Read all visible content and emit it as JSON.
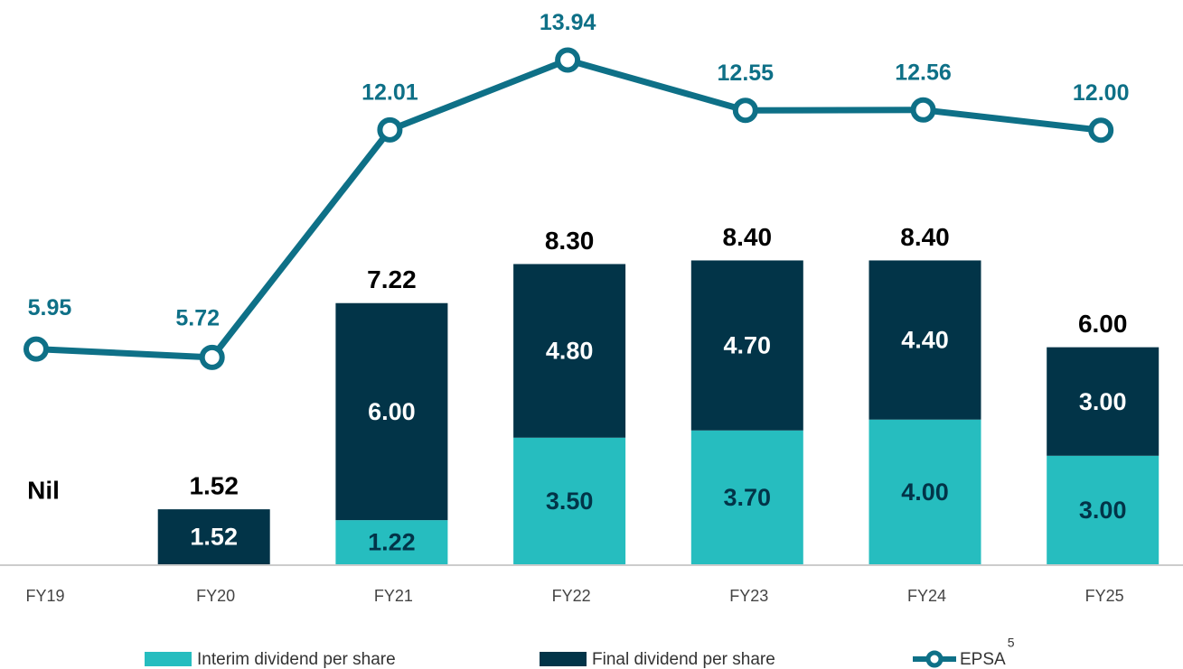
{
  "chart_data": {
    "type": "bar_line",
    "categories": [
      "FY19",
      "FY20",
      "FY21",
      "FY22",
      "FY23",
      "FY24",
      "FY25"
    ],
    "series": [
      {
        "name": "Interim dividend per share",
        "color": "#26bdbf",
        "values": [
          null,
          null,
          1.22,
          3.5,
          3.7,
          4.0,
          3.0
        ],
        "value_labels": [
          null,
          null,
          "1.22",
          "3.50",
          "3.70",
          "4.00",
          "3.00"
        ]
      },
      {
        "name": "Final dividend per share",
        "color": "#023448",
        "values": [
          null,
          1.52,
          6.0,
          4.8,
          4.7,
          4.4,
          3.0
        ],
        "value_labels": [
          null,
          "1.52",
          "6.00",
          "4.80",
          "4.70",
          "4.40",
          "3.00"
        ]
      },
      {
        "name": "EPSA",
        "type": "line",
        "color": "#0e7087",
        "values": [
          5.95,
          5.72,
          12.01,
          13.94,
          12.55,
          12.56,
          12.0
        ],
        "value_labels": [
          "5.95",
          "5.72",
          "12.01",
          "13.94",
          "12.55",
          "12.56",
          "12.00"
        ],
        "footnote_marker": "5"
      }
    ],
    "totals": [
      null,
      1.52,
      7.22,
      8.3,
      8.4,
      8.4,
      6.0
    ],
    "total_labels": [
      "Nil",
      "1.52",
      "7.22",
      "8.30",
      "8.40",
      "8.40",
      "6.00"
    ],
    "ylim": [
      0,
      15.6
    ]
  }
}
